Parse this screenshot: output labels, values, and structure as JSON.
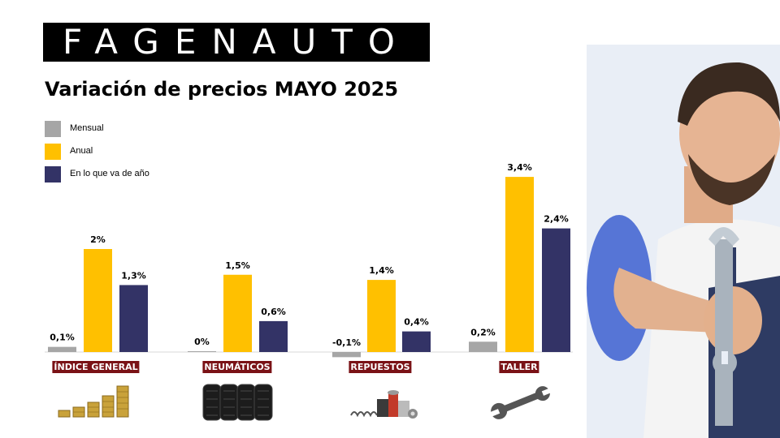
{
  "brand": {
    "logo_text": "FAGENAUTO"
  },
  "title": "Variación de precios MAYO 2025",
  "legend": [
    {
      "label": "Mensual",
      "color": "#a6a6a6"
    },
    {
      "label": "Anual",
      "color": "#ffc000"
    },
    {
      "label": "En lo que va de año",
      "color": "#333366"
    }
  ],
  "chart_data": {
    "type": "bar",
    "categories": [
      "ÍNDICE GENERAL",
      "NEUMÁTICOS",
      "REPUESTOS",
      "TALLER"
    ],
    "series": [
      {
        "name": "Mensual",
        "color": "#a6a6a6",
        "values": [
          0.1,
          0,
          -0.1,
          0.2
        ],
        "labels": [
          "0,1%",
          "0%",
          "-0,1%",
          "0,2%"
        ]
      },
      {
        "name": "Anual",
        "color": "#ffc000",
        "values": [
          2,
          1.5,
          1.4,
          3.4
        ],
        "labels": [
          "2%",
          "1,5%",
          "1,4%",
          "3,4%"
        ]
      },
      {
        "name": "En lo que va de año",
        "color": "#333366",
        "values": [
          1.3,
          0.6,
          0.4,
          2.4
        ],
        "labels": [
          "1,3%",
          "0,6%",
          "0,4%",
          "2,4%"
        ]
      }
    ],
    "category_label_color": "#7a1216",
    "grid": false,
    "legend_position": "top-left"
  },
  "icons": [
    "coin-stacks-icon",
    "tires-icon",
    "auto-parts-icon",
    "wrench-icon"
  ],
  "photo": "mechanic-holding-wrench"
}
